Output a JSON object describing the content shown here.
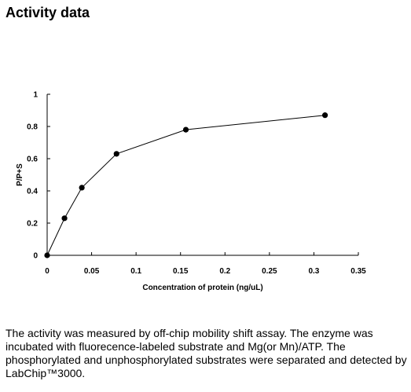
{
  "page": {
    "title": "Activity data",
    "caption": "The activity was measured by off-chip mobility shift assay. The enzyme was incubated with fluorecence-labeled  substrate and Mg(or Mn)/ATP. The phosphorylated and unphosphorylated substrates were separated and detected by LabChip™3000."
  },
  "chart_data": {
    "type": "line",
    "title": "",
    "xlabel": "Concentration of protein (ng/uL)",
    "ylabel": "P/P+S",
    "xlim": [
      0,
      0.35
    ],
    "ylim": [
      0,
      1
    ],
    "xticks": [
      0,
      0.05,
      0.1,
      0.15,
      0.2,
      0.25,
      0.3,
      0.35
    ],
    "xtick_labels": [
      "0",
      "0.05",
      "0.1",
      "0.15",
      "0.2",
      "0.25",
      "0.3",
      "0.35"
    ],
    "yticks": [
      0,
      0.2,
      0.4,
      0.6,
      0.8,
      1
    ],
    "ytick_labels": [
      "0",
      "0.2",
      "0.4",
      "0.6",
      "0.8",
      "1"
    ],
    "grid": false,
    "series": [
      {
        "x": [
          0,
          0.0195,
          0.039,
          0.078,
          0.156,
          0.3125
        ],
        "y": [
          0,
          0.23,
          0.42,
          0.63,
          0.78,
          0.87
        ],
        "color": "#000000",
        "marker": "circle"
      }
    ]
  }
}
